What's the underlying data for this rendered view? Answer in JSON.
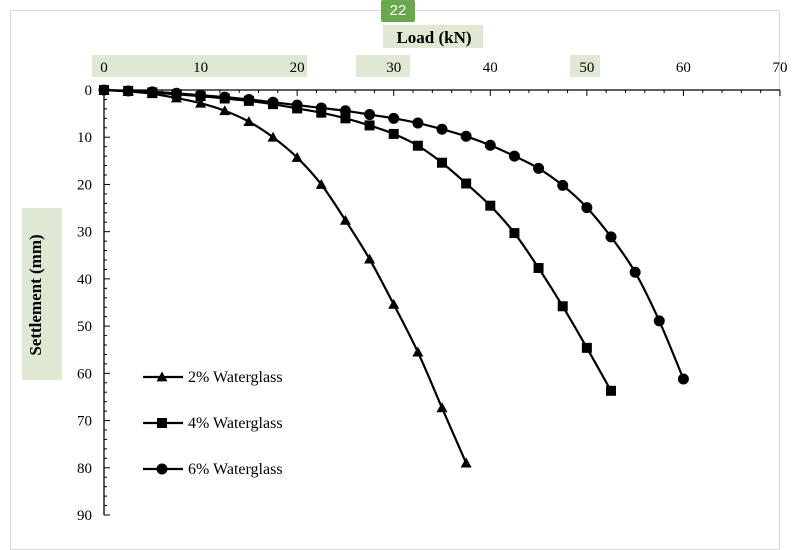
{
  "page_badge": "22",
  "colors": {
    "label_highlight": "#dfe8d3",
    "badge": "#6aa84f",
    "series": "#000000"
  },
  "chart_data": {
    "type": "line",
    "xlabel": "Load (kN)",
    "ylabel": "Settlement (mm)",
    "x_axis_position": "top",
    "y_axis_inverted": true,
    "xlim": [
      0,
      70
    ],
    "ylim": [
      0,
      90
    ],
    "x_ticks": [
      0,
      10,
      20,
      30,
      40,
      50,
      60,
      70
    ],
    "y_ticks": [
      0,
      10,
      20,
      30,
      40,
      50,
      60,
      70,
      80,
      90
    ],
    "grid": false,
    "legend_position": "bottom-left",
    "series": [
      {
        "name": "2% Waterglass",
        "marker": "triangle",
        "x": [
          0,
          2.5,
          5,
          7.5,
          10,
          12.5,
          15,
          17.5,
          20,
          22.5,
          25,
          27.5,
          30,
          32.5,
          35,
          37.5
        ],
        "y": [
          0,
          0.3,
          0.8,
          1.7,
          2.8,
          4.4,
          6.7,
          10,
          14.3,
          20,
          27.6,
          35.8,
          45.4,
          55.5,
          67.3,
          79.0
        ]
      },
      {
        "name": "4% Waterglass",
        "marker": "square",
        "x": [
          0,
          2.5,
          5,
          7.5,
          10,
          12.5,
          15,
          17.5,
          20,
          22.5,
          25,
          27.5,
          30,
          32.5,
          35,
          37.5,
          40,
          42.5,
          45,
          47.5,
          50,
          52.5
        ],
        "y": [
          0,
          0.2,
          0.5,
          0.9,
          1.3,
          1.8,
          2.3,
          3.0,
          3.9,
          4.8,
          6.0,
          7.5,
          9.3,
          11.8,
          15.4,
          19.8,
          24.5,
          30.3,
          37.7,
          45.8,
          54.6,
          63.7
        ]
      },
      {
        "name": "6% Waterglass",
        "marker": "circle",
        "x": [
          0,
          2.5,
          5,
          7.5,
          10,
          12.5,
          15,
          17.5,
          20,
          22.5,
          25,
          27.5,
          30,
          32.5,
          35,
          37.5,
          40,
          42.5,
          45,
          47.5,
          50,
          52.5,
          55,
          57.5,
          60
        ],
        "y": [
          0,
          0.2,
          0.4,
          0.7,
          1.1,
          1.5,
          2.0,
          2.6,
          3.2,
          3.8,
          4.4,
          5.2,
          6.0,
          7.0,
          8.3,
          9.8,
          11.7,
          14.0,
          16.6,
          20.2,
          24.9,
          31.1,
          38.6,
          48.9,
          61.2
        ]
      }
    ]
  }
}
